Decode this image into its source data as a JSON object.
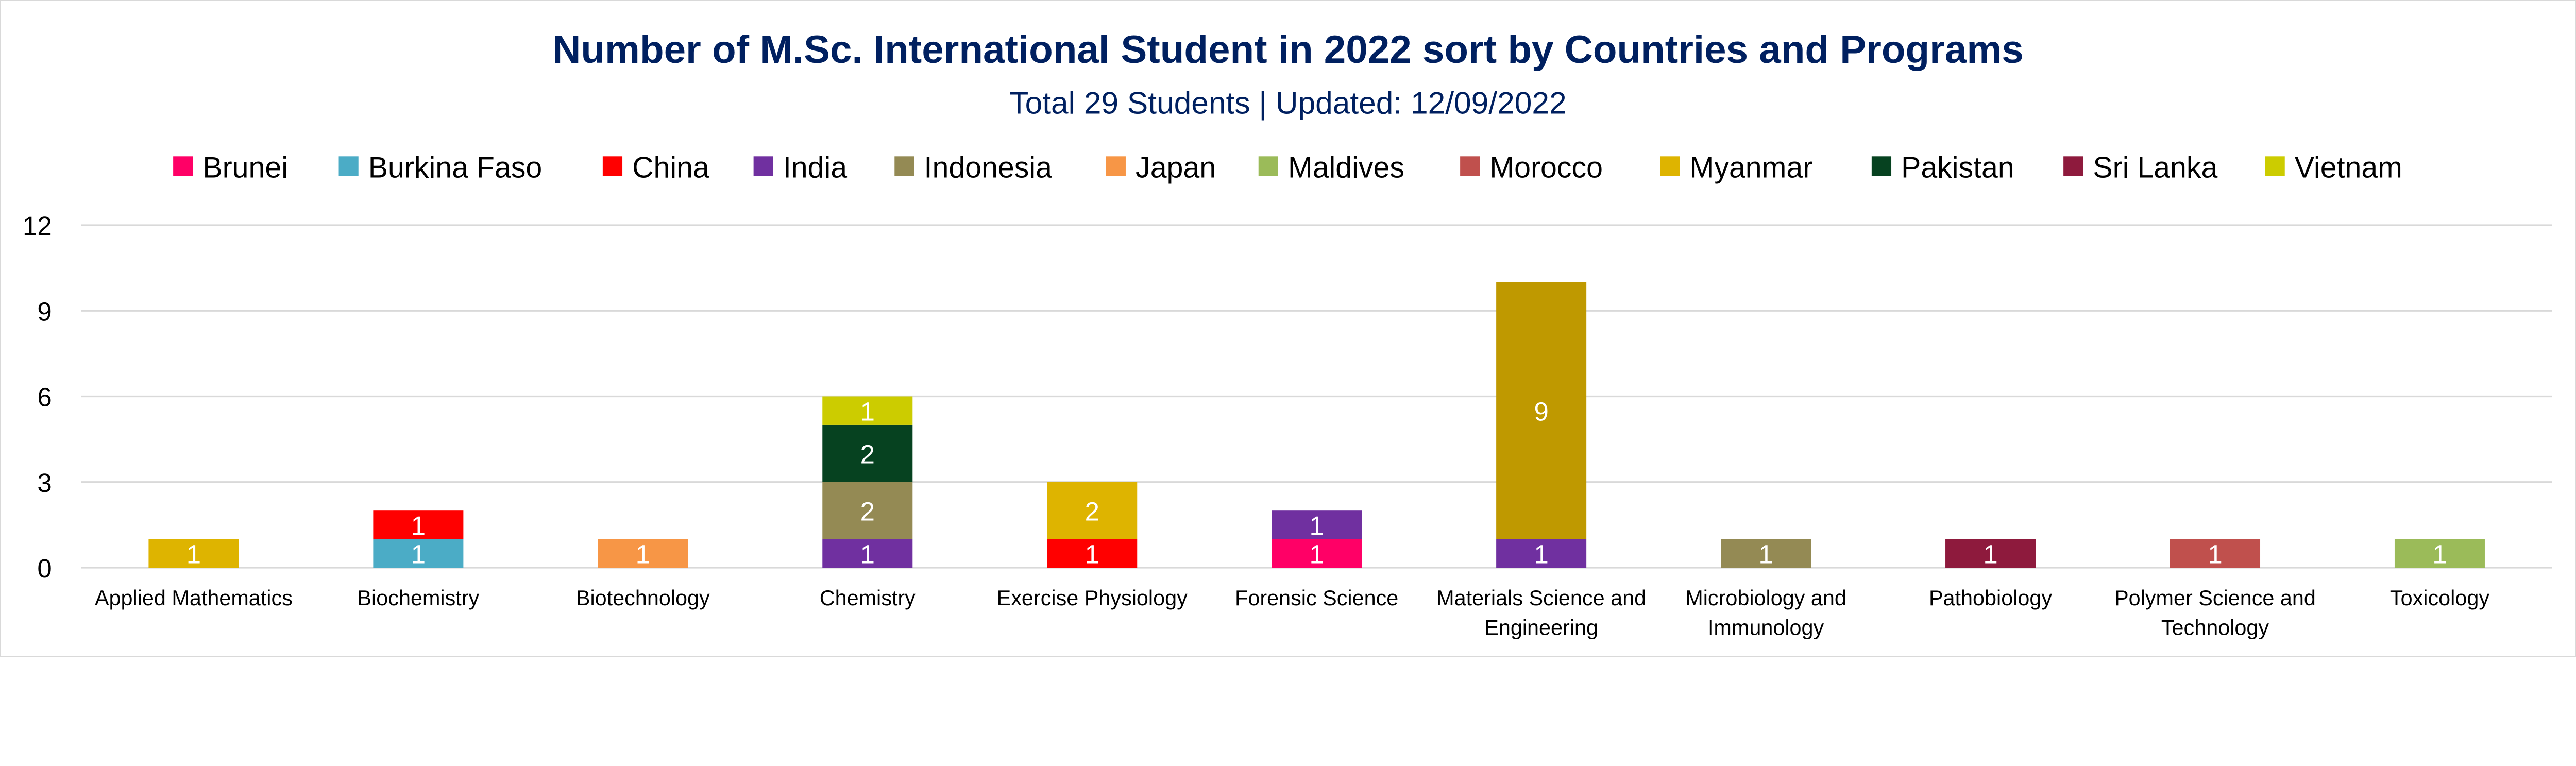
{
  "chart_data": {
    "type": "bar",
    "stacked": true,
    "title": "Number of M.Sc. International Student in 2022 sort by Countries and Programs",
    "subtitle": "Total 29 Students | Updated: 12/09/2022",
    "xlabel": "",
    "ylabel": "",
    "ylim": [
      0,
      12
    ],
    "yticks": [
      "0",
      "3",
      "6",
      "9",
      "12"
    ],
    "grid": true,
    "legend_position": "top",
    "categories": [
      "Applied Mathematics",
      "Biochemistry",
      "Biotechnology",
      "Chemistry",
      "Exercise Physiology",
      "Forensic Science",
      "Materials Science and Engineering",
      "Microbiology and Immunology",
      "Pathobiology",
      "Polymer Science and Technology",
      "Toxicology"
    ],
    "series": [
      {
        "name": "Brunei",
        "color": "#FF0066",
        "values": [
          0,
          0,
          0,
          0,
          0,
          1,
          0,
          0,
          0,
          0,
          0
        ]
      },
      {
        "name": "Burkina Faso",
        "color": "#4BACC6",
        "values": [
          0,
          1,
          0,
          0,
          0,
          0,
          0,
          0,
          0,
          0,
          0
        ]
      },
      {
        "name": "China",
        "color": "#FF0000",
        "values": [
          0,
          1,
          0,
          0,
          1,
          0,
          0,
          0,
          0,
          0,
          0
        ]
      },
      {
        "name": "India",
        "color": "#7030A0",
        "values": [
          0,
          0,
          0,
          1,
          0,
          1,
          1,
          0,
          0,
          0,
          0
        ]
      },
      {
        "name": "Indonesia",
        "color": "#948A54",
        "values": [
          0,
          0,
          0,
          2,
          0,
          0,
          0,
          1,
          0,
          0,
          0
        ]
      },
      {
        "name": "Japan",
        "color": "#F79646",
        "values": [
          0,
          0,
          1,
          0,
          0,
          0,
          0,
          0,
          0,
          0,
          0
        ]
      },
      {
        "name": "Maldives",
        "color": "#9BBB59",
        "values": [
          0,
          0,
          0,
          0,
          0,
          0,
          0,
          0,
          0,
          0,
          1
        ]
      },
      {
        "name": "Morocco",
        "color": "#C0504D",
        "values": [
          0,
          0,
          0,
          0,
          0,
          0,
          0,
          0,
          0,
          1,
          0
        ]
      },
      {
        "name": "Myanmar",
        "color": "#DEB400",
        "point_colors": {
          "6": "#BF9900"
        },
        "values": [
          1,
          0,
          0,
          0,
          2,
          0,
          9,
          0,
          0,
          0,
          0
        ]
      },
      {
        "name": "Pakistan",
        "color": "#064220",
        "values": [
          0,
          0,
          0,
          2,
          0,
          0,
          0,
          0,
          0,
          0,
          0
        ]
      },
      {
        "name": "Sri Lanka",
        "color": "#8E1A3D",
        "values": [
          0,
          0,
          0,
          0,
          0,
          0,
          0,
          0,
          1,
          0,
          0
        ]
      },
      {
        "name": "Vietnam",
        "color": "#CCCC00",
        "values": [
          0,
          0,
          0,
          1,
          0,
          0,
          0,
          0,
          0,
          0,
          0
        ]
      }
    ],
    "colors": {
      "title": "#002060",
      "grid": "#D9D9D9",
      "text": "#000000",
      "data_label": "#FFFFFF"
    }
  }
}
